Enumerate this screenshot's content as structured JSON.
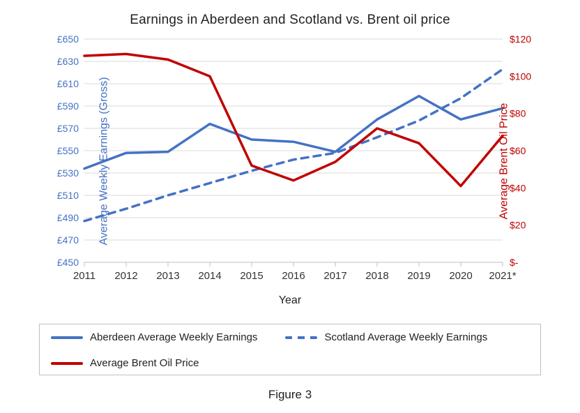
{
  "title": "Earnings in Aberdeen and Scotland vs. Brent oil price",
  "figure_label": "Figure 3",
  "x_label": "Year",
  "y_left_label": "Average Weekly Earnings (Gross)",
  "y_right_label": "Average Brent Oil Price",
  "categories": [
    "2011",
    "2012",
    "2013",
    "2014",
    "2015",
    "2016",
    "2017",
    "2018",
    "2019",
    "2020",
    "2021*"
  ],
  "y_left": {
    "lim": [
      450,
      650
    ],
    "ticks": [
      450,
      470,
      490,
      510,
      530,
      550,
      570,
      590,
      610,
      630,
      650
    ],
    "tick_labels": [
      "£450",
      "£470",
      "£490",
      "£510",
      "£530",
      "£550",
      "£570",
      "£590",
      "£610",
      "£630",
      "£650"
    ],
    "color": "#4472c4",
    "label_color": "#4472c4",
    "label_fontsize": 16,
    "tick_fontsize": 14
  },
  "y_right": {
    "lim": [
      0,
      120
    ],
    "ticks": [
      0,
      20,
      40,
      60,
      80,
      100,
      120
    ],
    "tick_labels": [
      "$-",
      "$20",
      "$40",
      "$60",
      "$80",
      "$100",
      "$120"
    ],
    "color": "#c00000",
    "label_color": "#c00000",
    "label_fontsize": 16,
    "tick_fontsize": 14
  },
  "series": {
    "aberdeen": {
      "label": "Aberdeen Average Weekly Earnings",
      "color": "#4472c4",
      "line_width": 3.5,
      "dash": "none",
      "axis": "left",
      "values": [
        534,
        548,
        549,
        574,
        560,
        558,
        549,
        578,
        599,
        578,
        588
      ]
    },
    "scotland": {
      "label": "Scotland Average Weekly Earnings",
      "color": "#4472c4",
      "line_width": 3.5,
      "dash": "10,8",
      "axis": "left",
      "values": [
        487,
        498,
        510,
        521,
        532,
        542,
        548,
        562,
        577,
        597,
        623
      ]
    },
    "brent": {
      "label": "Average Brent Oil Price",
      "color": "#c00000",
      "line_width": 3.5,
      "dash": "none",
      "axis": "right",
      "values": [
        111,
        112,
        109,
        100,
        52,
        44,
        54,
        72,
        64,
        41,
        68
      ]
    }
  },
  "legend_order": [
    "aberdeen",
    "scotland",
    "brent"
  ],
  "grid_color": "#d9d9d9",
  "axis_line_color": "#bfbfbf",
  "x_tick_fontsize": 15,
  "title_fontsize": 19,
  "background_color": "#ffffff"
}
